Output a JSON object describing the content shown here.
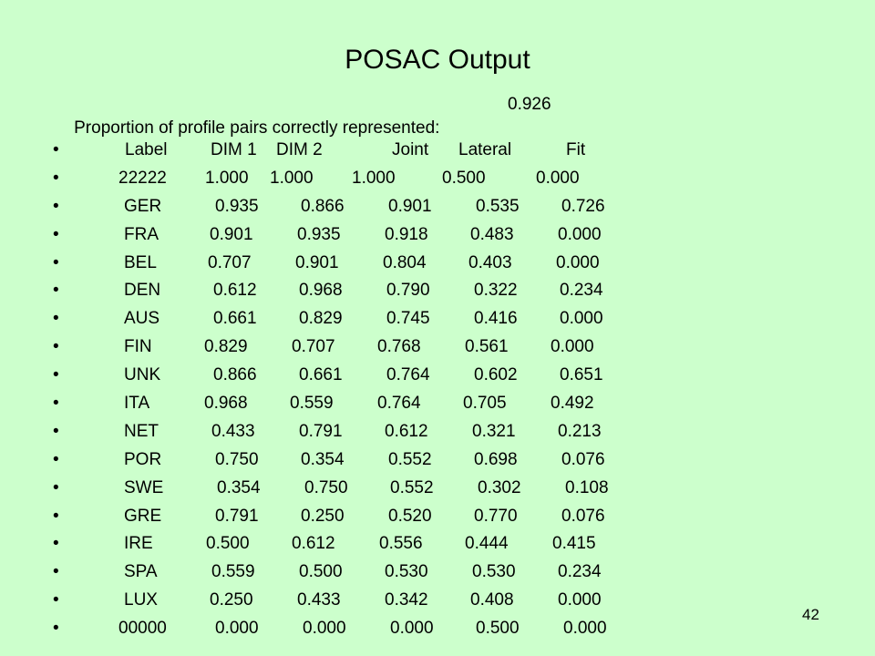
{
  "slide": {
    "title": "POSAC Output",
    "subtitle_label": "Proportion of profile pairs correctly represented:",
    "subtitle_value": "0.926",
    "bullet": "•",
    "page_number": "42"
  },
  "table": {
    "header": [
      "Label",
      "DIM 1",
      "DIM 2",
      "Joint",
      "Lateral",
      "Fit"
    ],
    "rows": [
      [
        "22222",
        "1.000",
        "1.000",
        "1.000",
        "0.500",
        "0.000"
      ],
      [
        "GER",
        "0.935",
        "0.866",
        "0.901",
        "0.535",
        "0.726"
      ],
      [
        "FRA",
        "0.901",
        "0.935",
        "0.918",
        "0.483",
        "0.000"
      ],
      [
        "BEL",
        "0.707",
        "0.901",
        "0.804",
        "0.403",
        "0.000"
      ],
      [
        "DEN",
        "0.612",
        "0.968",
        "0.790",
        "0.322",
        "0.234"
      ],
      [
        "AUS",
        "0.661",
        "0.829",
        "0.745",
        "0.416",
        "0.000"
      ],
      [
        "FIN",
        "0.829",
        "0.707",
        "0.768",
        "0.561",
        "0.000"
      ],
      [
        "UNK",
        "0.866",
        "0.661",
        "0.764",
        "0.602",
        "0.651"
      ],
      [
        "ITA",
        "0.968",
        "0.559",
        "0.764",
        "0.705",
        "0.492"
      ],
      [
        "NET",
        "0.433",
        "0.791",
        "0.612",
        "0.321",
        "0.213"
      ],
      [
        "POR",
        "0.750",
        "0.354",
        "0.552",
        "0.698",
        "0.076"
      ],
      [
        "SWE",
        "0.354",
        "0.750",
        "0.552",
        "0.302",
        "0.108"
      ],
      [
        "GRE",
        "0.791",
        "0.250",
        "0.520",
        "0.770",
        "0.076"
      ],
      [
        "IRE",
        "0.500",
        "0.612",
        "0.556",
        "0.444",
        "0.415"
      ],
      [
        "SPA",
        "0.559",
        "0.500",
        "0.530",
        "0.530",
        "0.234"
      ],
      [
        "LUX",
        "0.250",
        "0.433",
        "0.342",
        "0.408",
        "0.000"
      ],
      [
        "00000",
        "0.000",
        "0.000",
        "0.000",
        "0.500",
        "0.000"
      ]
    ]
  },
  "colors": {
    "background": "#ccffcc",
    "text": "#000000"
  }
}
